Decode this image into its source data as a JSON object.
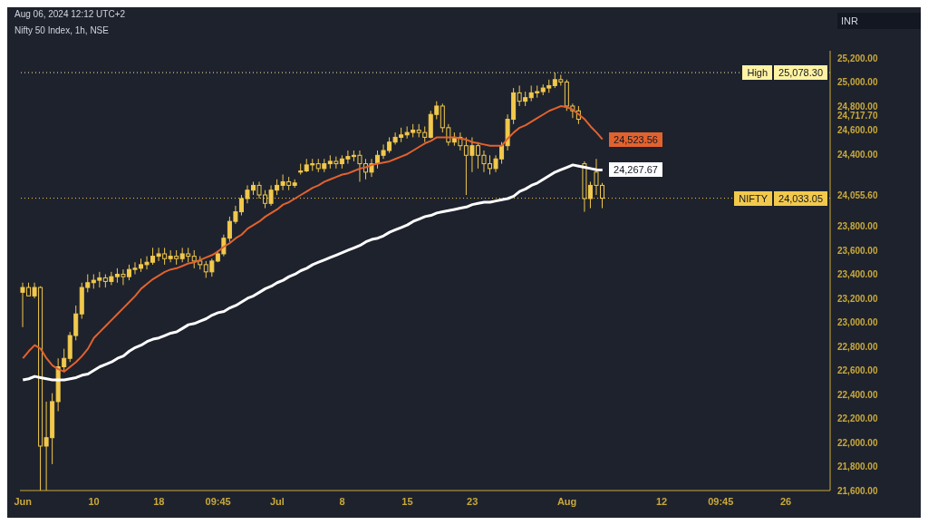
{
  "chart_data": {
    "type": "candlestick",
    "title": "Nifty 50 Index, 1h, NSE",
    "ylabel": "INR",
    "color": "#f2c94c",
    "annotations": [
      "Aug 06, 2024 12:12 UTC+2",
      {
        "text": "25,078.30",
        "y": 25078.3
      },
      {
        "text": "24,033.05",
        "y": 24033.05
      }
    ],
    "ref_lines": [
      {
        "axis": "y",
        "value": 25078.3,
        "label": "High",
        "color": "#fff3a3",
        "line_style": "dotted"
      },
      {
        "axis": "y",
        "value": 24033.05,
        "label": "NIFTY",
        "color": "#f2c94c",
        "line_style": "dotted"
      }
    ],
    "categories": [
      "Jun",
      null,
      null,
      null,
      null,
      null,
      null,
      null,
      null,
      null,
      null,
      null,
      "10",
      null,
      null,
      null,
      null,
      null,
      null,
      null,
      null,
      null,
      null,
      "18",
      null,
      null,
      null,
      null,
      null,
      null,
      null,
      null,
      null,
      "09:45",
      null,
      null,
      null,
      null,
      null,
      null,
      null,
      null,
      null,
      "Jul",
      null,
      null,
      null,
      null,
      null,
      null,
      null,
      null,
      null,
      null,
      "8",
      null,
      null,
      null,
      null,
      null,
      null,
      null,
      null,
      null,
      null,
      "15",
      null,
      null,
      null,
      null,
      null,
      null,
      null,
      null,
      null,
      null,
      "23",
      null,
      null,
      null,
      null,
      null,
      null,
      null,
      null,
      null,
      null,
      null,
      null,
      null,
      null,
      null,
      "Aug",
      null,
      null,
      null,
      null,
      null,
      null,
      null,
      null,
      null,
      null,
      null,
      null,
      null,
      null,
      null,
      "12",
      null,
      null,
      null,
      null,
      null,
      null,
      null,
      null,
      null,
      "09:45",
      null,
      null,
      null,
      null,
      null,
      null,
      null,
      null,
      null,
      null,
      "26",
      null,
      null,
      null,
      null,
      null,
      null,
      null
    ],
    "ohlc": [
      [
        23250,
        23330,
        22960,
        23290
      ],
      [
        23290,
        23330,
        23220,
        23220
      ],
      [
        23220,
        23330,
        23200,
        23290
      ],
      [
        23290,
        23300,
        21600,
        21970
      ],
      [
        21970,
        22340,
        21600,
        22040
      ],
      [
        22040,
        22410,
        21820,
        22340
      ],
      [
        22340,
        22700,
        22260,
        22630
      ],
      [
        22630,
        22780,
        22590,
        22700
      ],
      [
        22700,
        22920,
        22670,
        22890
      ],
      [
        22890,
        23140,
        22850,
        23070
      ],
      [
        23070,
        23330,
        23030,
        23290
      ],
      [
        23290,
        23400,
        23250,
        23330
      ],
      [
        23330,
        23400,
        23280,
        23350
      ],
      [
        23350,
        23420,
        23290,
        23370
      ],
      [
        23370,
        23400,
        23290,
        23340
      ],
      [
        23340,
        23420,
        23310,
        23380
      ],
      [
        23380,
        23450,
        23330,
        23400
      ],
      [
        23400,
        23440,
        23310,
        23380
      ],
      [
        23380,
        23480,
        23350,
        23440
      ],
      [
        23440,
        23500,
        23400,
        23450
      ],
      [
        23450,
        23530,
        23420,
        23480
      ],
      [
        23480,
        23550,
        23440,
        23500
      ],
      [
        23500,
        23620,
        23480,
        23550
      ],
      [
        23550,
        23620,
        23510,
        23570
      ],
      [
        23570,
        23620,
        23480,
        23530
      ],
      [
        23530,
        23600,
        23500,
        23550
      ],
      [
        23550,
        23600,
        23480,
        23530
      ],
      [
        23530,
        23620,
        23500,
        23570
      ],
      [
        23570,
        23620,
        23500,
        23550
      ],
      [
        23550,
        23600,
        23450,
        23510
      ],
      [
        23510,
        23550,
        23440,
        23480
      ],
      [
        23480,
        23510,
        23370,
        23420
      ],
      [
        23420,
        23530,
        23380,
        23510
      ],
      [
        23510,
        23600,
        23500,
        23570
      ],
      [
        23570,
        23730,
        23550,
        23700
      ],
      [
        23700,
        23880,
        23670,
        23840
      ],
      [
        23840,
        23970,
        23820,
        23920
      ],
      [
        23920,
        24060,
        23890,
        24030
      ],
      [
        24030,
        24140,
        23990,
        24100
      ],
      [
        24100,
        24170,
        24060,
        24140
      ],
      [
        24140,
        24170,
        24030,
        24060
      ],
      [
        24060,
        24100,
        23950,
        23990
      ],
      [
        23990,
        24140,
        23970,
        24100
      ],
      [
        24100,
        24190,
        24060,
        24140
      ],
      [
        24140,
        24230,
        24100,
        24170
      ],
      [
        24170,
        24210,
        24100,
        24140
      ],
      [
        24140,
        24190,
        24120,
        24160
      ],
      [
        24250,
        24320,
        24230,
        24260
      ],
      [
        24260,
        24360,
        24250,
        24310
      ],
      [
        24310,
        24360,
        24260,
        24320
      ],
      [
        24320,
        24360,
        24250,
        24280
      ],
      [
        24280,
        24360,
        24250,
        24320
      ],
      [
        24320,
        24390,
        24280,
        24340
      ],
      [
        24340,
        24380,
        24280,
        24320
      ],
      [
        24320,
        24390,
        24280,
        24360
      ],
      [
        24360,
        24430,
        24320,
        24380
      ],
      [
        24380,
        24430,
        24340,
        24390
      ],
      [
        24390,
        24430,
        24170,
        24320
      ],
      [
        24320,
        24360,
        24190,
        24250
      ],
      [
        24250,
        24360,
        24210,
        24320
      ],
      [
        24320,
        24430,
        24280,
        24390
      ],
      [
        24390,
        24480,
        24360,
        24430
      ],
      [
        24430,
        24540,
        24410,
        24500
      ],
      [
        24500,
        24580,
        24480,
        24540
      ],
      [
        24540,
        24620,
        24500,
        24560
      ],
      [
        24560,
        24630,
        24530,
        24580
      ],
      [
        24580,
        24650,
        24540,
        24600
      ],
      [
        24600,
        24650,
        24540,
        24580
      ],
      [
        24580,
        24630,
        24500,
        24540
      ],
      [
        24540,
        24760,
        24530,
        24730
      ],
      [
        24730,
        24840,
        24690,
        24800
      ],
      [
        24800,
        24820,
        24580,
        24620
      ],
      [
        24620,
        24650,
        24470,
        24500
      ],
      [
        24500,
        24580,
        24470,
        24540
      ],
      [
        24540,
        24580,
        24430,
        24470
      ],
      [
        24470,
        24540,
        24060,
        24390
      ],
      [
        24390,
        24540,
        24250,
        24470
      ],
      [
        24470,
        24500,
        24280,
        24390
      ],
      [
        24390,
        24430,
        24250,
        24320
      ],
      [
        24320,
        24390,
        24230,
        24280
      ],
      [
        24280,
        24390,
        24250,
        24360
      ],
      [
        24360,
        24500,
        24320,
        24470
      ],
      [
        24470,
        24730,
        24430,
        24690
      ],
      [
        24690,
        24950,
        24650,
        24910
      ],
      [
        24910,
        24970,
        24800,
        24840
      ],
      [
        24840,
        24920,
        24800,
        24870
      ],
      [
        24870,
        24970,
        24840,
        24910
      ],
      [
        24910,
        24970,
        24870,
        24920
      ],
      [
        24920,
        24980,
        24890,
        24950
      ],
      [
        24950,
        25020,
        24910,
        24970
      ],
      [
        24970,
        25078.3,
        24950,
        25020
      ],
      [
        25020,
        25060,
        24970,
        25000
      ],
      [
        25000,
        25020,
        24760,
        24800
      ],
      [
        24800,
        24820,
        24700,
        24760
      ],
      [
        24760,
        24800,
        24650,
        24690
      ],
      [
        24320,
        24340,
        23920,
        24030
      ],
      [
        24030,
        24170,
        23950,
        24140
      ],
      [
        24250,
        24360,
        24060,
        24140
      ],
      [
        24140,
        24160,
        23950,
        24033.05
      ],
      null,
      null,
      null,
      null,
      null,
      null,
      null,
      null,
      null,
      null,
      null,
      null,
      null,
      null,
      null,
      null,
      null,
      null,
      null,
      null,
      null,
      null,
      null,
      null,
      null,
      null,
      null,
      null,
      null,
      null,
      null,
      null,
      null,
      null,
      null,
      null,
      null,
      null
    ],
    "series": [
      {
        "type": "line",
        "color": "#e2622e",
        "value_labels": [
          null,
          null,
          null,
          null,
          null,
          null,
          null,
          null,
          null,
          null,
          null,
          null,
          null,
          null,
          null,
          null,
          null,
          null,
          null,
          null,
          null,
          null,
          null,
          null,
          null,
          null,
          null,
          null,
          null,
          null,
          null,
          null,
          null,
          null,
          null,
          null,
          null,
          null,
          null,
          null,
          null,
          null,
          null,
          null,
          null,
          null,
          null,
          null,
          null,
          null,
          null,
          null,
          null,
          null,
          null,
          null,
          null,
          null,
          null,
          null,
          null,
          null,
          null,
          null,
          null,
          null,
          null,
          null,
          null,
          null,
          null,
          null,
          null,
          null,
          null,
          null,
          null,
          null,
          null,
          null,
          null,
          null,
          null,
          null,
          null,
          null,
          null,
          null,
          null,
          null,
          null,
          null,
          null,
          null,
          null,
          null,
          null,
          null,
          "24,523.56",
          null,
          null,
          null,
          null,
          null,
          null,
          null,
          null,
          null,
          null,
          null,
          null,
          null,
          null,
          null,
          null,
          null,
          null,
          null,
          null,
          null,
          null,
          null,
          null,
          null,
          null,
          null,
          null,
          null,
          null,
          null,
          null,
          null,
          null,
          null,
          null,
          null,
          null
        ],
        "values": [
          22700,
          22760,
          22810,
          22780,
          22700,
          22640,
          22610,
          22590,
          22630,
          22670,
          22720,
          22780,
          22870,
          22920,
          22970,
          23020,
          23070,
          23120,
          23170,
          23220,
          23280,
          23320,
          23360,
          23390,
          23420,
          23440,
          23450,
          23470,
          23490,
          23500,
          23520,
          23540,
          23560,
          23590,
          23630,
          23660,
          23700,
          23730,
          23780,
          23810,
          23840,
          23880,
          23910,
          23940,
          23980,
          24000,
          24030,
          24060,
          24090,
          24120,
          24140,
          24170,
          24190,
          24210,
          24230,
          24240,
          24260,
          24280,
          24290,
          24310,
          24320,
          24330,
          24340,
          24360,
          24380,
          24400,
          24430,
          24460,
          24490,
          24510,
          24540,
          24540,
          24540,
          24540,
          24530,
          24520,
          24500,
          24490,
          24480,
          24470,
          24470,
          24470,
          24530,
          24580,
          24620,
          24640,
          24670,
          24700,
          24730,
          24760,
          24780,
          24800,
          24790,
          24770,
          24730,
          24690,
          24630,
          24580,
          24523.56,
          null,
          null,
          null,
          null,
          null,
          null,
          null,
          null,
          null,
          null,
          null,
          null,
          null,
          null,
          null,
          null,
          null,
          null,
          null,
          null,
          null,
          null,
          null,
          null,
          null,
          null,
          null,
          null,
          null,
          null,
          null,
          null,
          null,
          null,
          null,
          null,
          null,
          null
        ]
      },
      {
        "type": "line",
        "color": "#ffffff",
        "value_labels": [
          null,
          null,
          null,
          null,
          null,
          null,
          null,
          null,
          null,
          null,
          null,
          null,
          null,
          null,
          null,
          null,
          null,
          null,
          null,
          null,
          null,
          null,
          null,
          null,
          null,
          null,
          null,
          null,
          null,
          null,
          null,
          null,
          null,
          null,
          null,
          null,
          null,
          null,
          null,
          null,
          null,
          null,
          null,
          null,
          null,
          null,
          null,
          null,
          null,
          null,
          null,
          null,
          null,
          null,
          null,
          null,
          null,
          null,
          null,
          null,
          null,
          null,
          null,
          null,
          null,
          null,
          null,
          null,
          null,
          null,
          null,
          null,
          null,
          null,
          null,
          null,
          null,
          null,
          null,
          null,
          null,
          null,
          null,
          null,
          null,
          null,
          null,
          null,
          null,
          null,
          null,
          null,
          null,
          null,
          null,
          null,
          null,
          null,
          "24,267.67",
          null,
          null,
          null,
          null,
          null,
          null,
          null,
          null,
          null,
          null,
          null,
          null,
          null,
          null,
          null,
          null,
          null,
          null,
          null,
          null,
          null,
          null,
          null,
          null,
          null,
          null,
          null,
          null,
          null,
          null,
          null,
          null,
          null,
          null,
          null,
          null,
          null,
          null
        ],
        "values": [
          22520,
          22530,
          22550,
          22540,
          22530,
          22520,
          22520,
          22520,
          22530,
          22540,
          22560,
          22570,
          22600,
          22630,
          22650,
          22670,
          22700,
          22720,
          22760,
          22790,
          22810,
          22840,
          22860,
          22870,
          22890,
          22910,
          22920,
          22950,
          22980,
          22990,
          23010,
          23030,
          23060,
          23080,
          23090,
          23120,
          23140,
          23170,
          23200,
          23220,
          23250,
          23280,
          23300,
          23330,
          23350,
          23380,
          23400,
          23430,
          23450,
          23480,
          23500,
          23520,
          23540,
          23560,
          23580,
          23600,
          23620,
          23640,
          23670,
          23690,
          23700,
          23720,
          23750,
          23770,
          23790,
          23810,
          23840,
          23860,
          23880,
          23890,
          23910,
          23920,
          23930,
          23940,
          23950,
          23960,
          23980,
          23990,
          24000,
          24000,
          24010,
          24020,
          24030,
          24050,
          24090,
          24110,
          24140,
          24160,
          24190,
          24220,
          24250,
          24270,
          24290,
          24310,
          24300,
          24290,
          24280,
          24270,
          24267.67,
          null,
          null,
          null,
          null,
          null,
          null,
          null,
          null,
          null,
          null,
          null,
          null,
          null,
          null,
          null,
          null,
          null,
          null,
          null,
          null,
          null,
          null,
          null,
          null,
          null,
          null,
          null,
          null,
          null,
          null,
          null,
          null,
          null,
          null,
          null,
          null,
          null,
          null
        ]
      }
    ],
    "ylim": [
      21600,
      25260
    ],
    "yticks": [
      {
        "value": 21600,
        "label": "21,600.00"
      },
      {
        "value": 21800,
        "label": "21,800.00"
      },
      {
        "value": 22000,
        "label": "22,000.00"
      },
      {
        "value": 22200,
        "label": "22,200.00"
      },
      {
        "value": 22400,
        "label": "22,400.00"
      },
      {
        "value": 22600,
        "label": "22,600.00"
      },
      {
        "value": 22800,
        "label": "22,800.00"
      },
      {
        "value": 23000,
        "label": "23,000.00"
      },
      {
        "value": 23200,
        "label": "23,200.00"
      },
      {
        "value": 23400,
        "label": "23,400.00"
      },
      {
        "value": 23600,
        "label": "23,600.00"
      },
      {
        "value": 23800,
        "label": "23,800.00"
      },
      {
        "value": 24055.6,
        "label": "24,055.60"
      },
      {
        "value": 24400,
        "label": "24,400.00"
      },
      {
        "value": 24600,
        "label": "24,600.00"
      },
      {
        "value": 24717.7,
        "label": "24,717.70"
      },
      {
        "value": 24800,
        "label": "24,800.00"
      },
      {
        "value": 25000,
        "label": "25,000.00"
      },
      {
        "value": 25200,
        "label": "25,200.00"
      }
    ]
  }
}
